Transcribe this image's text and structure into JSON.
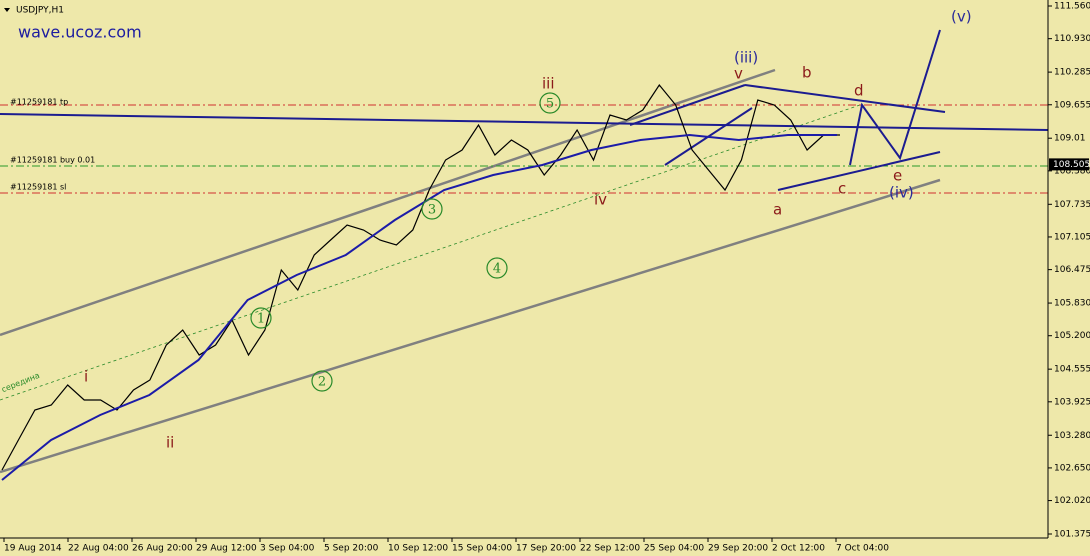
{
  "chart_data": {
    "type": "line",
    "title": "USDJPY,H1",
    "subtitle": "wave.ucoz.com",
    "x_labels": [
      "19 Aug 2014",
      "22 Aug 04:00",
      "26 Aug 20:00",
      "29 Aug 12:00",
      "3 Sep 04:00",
      "5 Sep 20:00",
      "10 Sep 12:00",
      "15 Sep 04:00",
      "17 Sep 20:00",
      "22 Sep 12:00",
      "25 Sep 04:00",
      "29 Sep 20:00",
      "2 Oct 12:00",
      "7 Oct 04:00"
    ],
    "ylim": [
      101.298,
      111.676
    ],
    "yticks": [
      {
        "value": 111.56,
        "label": "111.560"
      },
      {
        "value": 110.93,
        "label": "110.930"
      },
      110.285,
      109.655,
      109.01,
      {
        "value": 108.38,
        "label": "108.380"
      },
      107.735,
      107.105,
      106.475,
      {
        "value": 105.83,
        "label": "105.830"
      },
      {
        "value": 105.2,
        "label": "105.200"
      },
      104.555,
      103.925,
      {
        "value": 103.28,
        "label": "103.280"
      },
      {
        "value": 102.65,
        "label": "102.650"
      },
      {
        "value": 102.02,
        "label": "102.020"
      },
      101.375
    ],
    "series": [
      {
        "color": "#000000",
        "values": [
          102.609,
          103.188,
          103.767,
          103.863,
          104.249,
          103.96,
          103.96,
          103.767,
          104.153,
          104.346,
          105.021,
          105.31,
          104.828,
          105.021,
          105.503,
          104.828,
          105.31,
          106.467,
          106.082,
          106.757,
          107.046,
          107.335,
          107.239,
          107.046,
          106.95,
          107.239,
          108.011,
          108.589,
          108.782,
          109.264,
          108.686,
          108.975,
          108.782,
          108.3,
          108.686,
          109.168,
          108.589,
          109.457,
          109.361,
          109.554,
          110.036,
          109.65,
          108.782,
          108.396,
          108.011,
          108.589,
          109.747,
          109.65,
          109.361,
          108.782,
          109.072,
          109.072
        ]
      },
      {
        "color": "#1c1ca8",
        "values": [
          102.417,
          103.188,
          103.67,
          104.056,
          104.731,
          105.889,
          106.371,
          106.757,
          107.432,
          108.011,
          108.3,
          108.493,
          108.782,
          108.975,
          109.072,
          108.975,
          109.072,
          109.072
        ]
      }
    ],
    "current_price": {
      "value": 108.505,
      "label": "108.505"
    },
    "order_labels": [
      "#11259181 tp",
      "#11259181 buy 0.01",
      "#11259181 sl"
    ],
    "wave_labels": [
      "i",
      "ii",
      "iii",
      "iv",
      "v",
      "(iii)",
      "a",
      "b",
      "c",
      "d",
      "e",
      "(iv)",
      "(v)"
    ],
    "circled_labels": [
      "1",
      "2",
      "3",
      "4",
      "5"
    ],
    "midline_label": "середина"
  }
}
